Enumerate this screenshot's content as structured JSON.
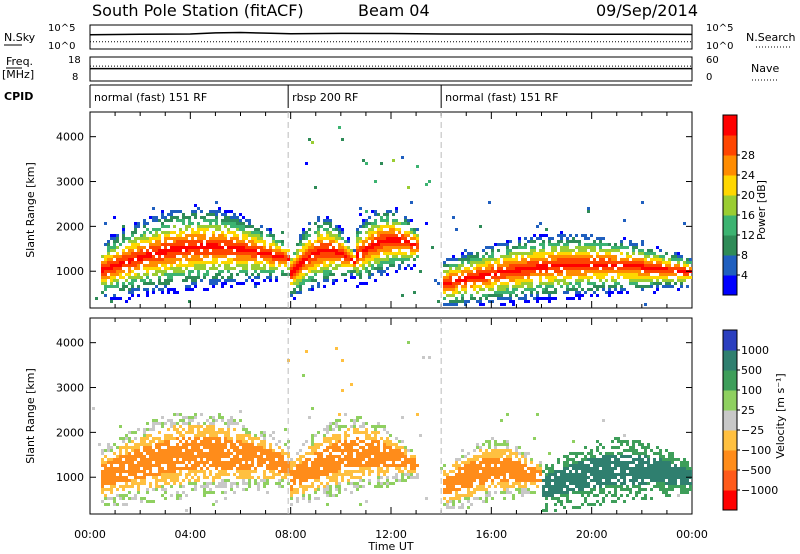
{
  "header": {
    "station": "South Pole Station (fitACF)",
    "beam": "Beam 04",
    "date": "09/Sep/2014"
  },
  "chart_data": [
    {
      "type": "line",
      "name": "sky-noise-strip",
      "left_label": "N.Sky",
      "right_label": "N.Search",
      "left_ticks": [
        "10^5",
        "10^0"
      ],
      "right_ticks": [
        "10^5",
        "10^0"
      ],
      "y_scale": "log",
      "ylim": [
        1,
        100000
      ],
      "series": [
        {
          "name": "N.Sky",
          "style": "solid",
          "x": [
            0,
            2,
            4,
            5,
            6,
            7,
            8,
            10,
            12,
            14,
            16,
            18,
            20,
            22,
            24
          ],
          "y": [
            1500,
            1800,
            2200,
            4000,
            5000,
            3500,
            2500,
            3000,
            2800,
            2200,
            2000,
            2100,
            1900,
            1800,
            1700
          ]
        },
        {
          "name": "N.Search",
          "style": "dotted",
          "x": [
            0,
            4,
            8,
            12,
            16,
            20,
            24
          ],
          "y": [
            30,
            30,
            30,
            30,
            30,
            30,
            30
          ]
        }
      ]
    },
    {
      "type": "line",
      "name": "frequency-nave-strip",
      "left_label": "Freq.",
      "left_unit": "[MHz]",
      "right_label": "Nave",
      "left_ticks": [
        "18",
        "8"
      ],
      "right_ticks": [
        "60",
        "0"
      ],
      "ylim_left": [
        8,
        18
      ],
      "ylim_right": [
        0,
        60
      ],
      "series": [
        {
          "name": "Freq.",
          "style": "solid",
          "x": [
            0,
            24
          ],
          "y": [
            13.2,
            13.2
          ]
        },
        {
          "name": "Nave",
          "style": "dotted",
          "x": [
            0,
            24
          ],
          "y": [
            38,
            38
          ]
        }
      ]
    },
    {
      "type": "table",
      "name": "cpid-strip",
      "label": "CPID",
      "segments": [
        {
          "label": "normal (fast) 151 RF",
          "start": 0,
          "end": 7.9
        },
        {
          "label": "rbsp 200 RF",
          "start": 7.9,
          "end": 14.0
        },
        {
          "label": "normal (fast) 151 RF",
          "start": 14.0,
          "end": 24
        }
      ]
    },
    {
      "type": "heatmap",
      "name": "power-panel",
      "ylabel": "Slant Range [km]",
      "yticks": [
        1000,
        2000,
        3000,
        4000
      ],
      "ylim": [
        180,
        4550
      ],
      "xlim": [
        0,
        24
      ],
      "colorbar": {
        "label": "Power [dB]",
        "ticks": [
          4,
          8,
          12,
          16,
          20,
          24,
          28
        ],
        "range": [
          0,
          32
        ],
        "colors": [
          "#0000ff",
          "#1f5fbf",
          "#2e8b57",
          "#3cb371",
          "#9acd32",
          "#ffd700",
          "#ff8c00",
          "#ff4500",
          "#ff0000"
        ]
      },
      "bands": [
        {
          "x0": 0.4,
          "x1": 7.9,
          "r_low": [
            600,
            1400
          ],
          "r_high": [
            1500,
            2300
          ],
          "core": "high"
        },
        {
          "x0": 7.9,
          "x1": 10.5,
          "r_low": [
            600,
            1500
          ],
          "r_high": [
            1300,
            2100
          ],
          "core": "high"
        },
        {
          "x0": 10.5,
          "x1": 13.0,
          "r_low": [
            900,
            1700
          ],
          "r_high": [
            1800,
            2300
          ],
          "core": "mid"
        },
        {
          "x0": 14.0,
          "x1": 24.0,
          "r_low": [
            400,
            1200
          ],
          "r_high": [
            1100,
            1700
          ],
          "core": "mixed"
        }
      ]
    },
    {
      "type": "heatmap",
      "name": "velocity-panel",
      "ylabel": "Slant Range [km]",
      "xlabel": "Time UT",
      "xticks": [
        "00:00",
        "04:00",
        "08:00",
        "12:00",
        "16:00",
        "20:00",
        "00:00"
      ],
      "yticks": [
        1000,
        2000,
        3000,
        4000
      ],
      "ylim": [
        180,
        4550
      ],
      "xlim": [
        0,
        24
      ],
      "colorbar": {
        "label": "Velocity [m s⁻¹]",
        "ticks": [
          "1000",
          "500",
          "100",
          "25",
          "−25",
          "−100",
          "−500",
          "−1000"
        ],
        "colors": [
          "#2b3fbf",
          "#2f7f6f",
          "#3e9e5a",
          "#8fd060",
          "#c8c8c8",
          "#ffc040",
          "#ff8c1a",
          "#ff5a1a",
          "#ff0000"
        ]
      },
      "bands": [
        {
          "x0": 0.4,
          "x1": 7.9,
          "r_low": [
            600,
            1400
          ],
          "r_high": [
            1500,
            2300
          ],
          "core": "orange"
        },
        {
          "x0": 7.9,
          "x1": 13.0,
          "r_low": [
            600,
            1700
          ],
          "r_high": [
            1300,
            2200
          ],
          "core": "orange"
        },
        {
          "x0": 14.0,
          "x1": 18.0,
          "r_low": [
            500,
            1200
          ],
          "r_high": [
            1100,
            1700
          ],
          "core": "orange"
        },
        {
          "x0": 18.0,
          "x1": 24.0,
          "r_low": [
            500,
            1200
          ],
          "r_high": [
            1100,
            1700
          ],
          "core": "green"
        }
      ]
    }
  ]
}
